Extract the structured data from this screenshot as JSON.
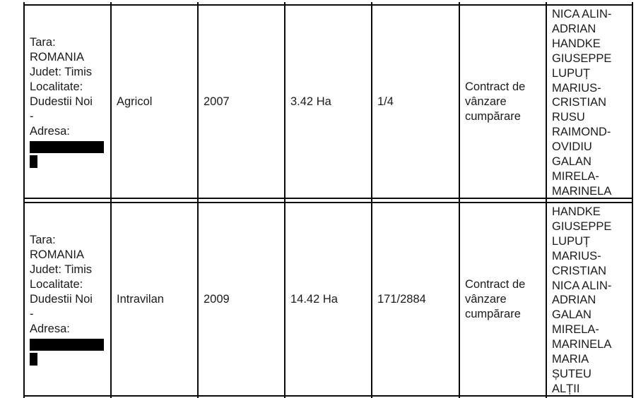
{
  "document": {
    "background": "#ffffff",
    "border_color": "#0a0a0a",
    "text_color": "#1b1b1b",
    "redaction_color": "#000000"
  },
  "table": {
    "columns": [
      "location",
      "category",
      "year",
      "area",
      "share",
      "acquisition",
      "owners"
    ],
    "rows": [
      {
        "location": "Tara:\nROMANIA\nJudet: Timis\nLocalitate:\nDudestii Noi\n-\nAdresa:",
        "address_redacted": true,
        "category": "Agricol",
        "year": "2007",
        "area": "3.42 Ha",
        "share": "1/4",
        "acquisition": "Contract de\nvânzare\ncumpărare",
        "owners": "NICA ALIN-\nADRIAN\nHANDKE\nGIUSEPPE\nLUPUȚ\nMARIUS-\nCRISTIAN\nRUSU\nRAIMOND-\nOVIDIU\nGALAN\nMIRELA-\nMARINELA"
      },
      {
        "location": "Tara:\nROMANIA\nJudet: Timis\nLocalitate:\nDudestii Noi\n-\nAdresa:",
        "address_redacted": true,
        "category": "Intravilan",
        "year": "2009",
        "area": "14.42 Ha",
        "share": "171/2884",
        "acquisition": "Contract de\nvânzare\ncumpărare",
        "owners": "HANDKE\nGIUSEPPE\nLUPUȚ\nMARIUS-\nCRISTIAN\nNICA ALIN-\nADRIAN\nGALAN\nMIRELA-\nMARINELA\nMARIA\nȘUTEU\nALȚII"
      }
    ]
  }
}
